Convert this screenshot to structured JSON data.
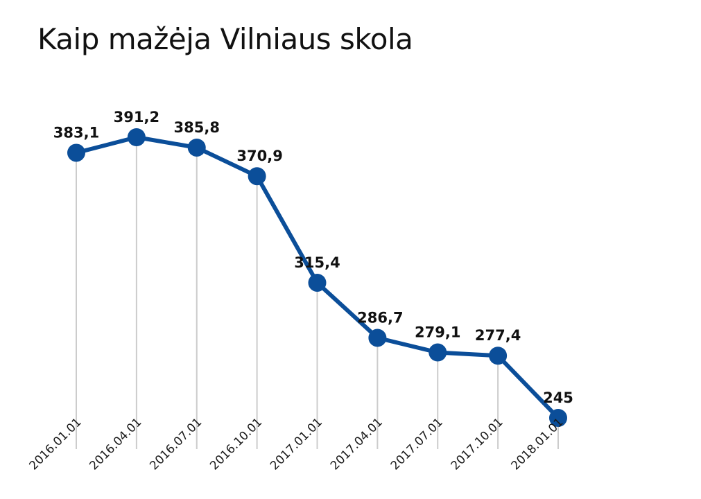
{
  "chart_data": {
    "type": "line",
    "title": "Kaip mažėja Vilniaus skola",
    "xlabel": "",
    "ylabel": "",
    "categories": [
      "2016.01.01",
      "2016.04.01",
      "2016.07.01",
      "2016.10.01",
      "2017.01.01",
      "2017.04.01",
      "2017.07.01",
      "2017.10.01",
      "2018.01.01"
    ],
    "series": [
      {
        "values": [
          383.1,
          391.2,
          385.8,
          370.9,
          315.4,
          286.7,
          279.1,
          277.4,
          245
        ],
        "labels": [
          "383,1",
          "391,2",
          "385,8",
          "370,9",
          "315,4",
          "286,7",
          "279,1",
          "277,4",
          "245"
        ],
        "color": "#0b4e99"
      }
    ],
    "grid": "vertical",
    "legend": "none",
    "colors": {
      "line": "#0b4e99",
      "grid": "#cccccc",
      "text": "#111111"
    }
  }
}
